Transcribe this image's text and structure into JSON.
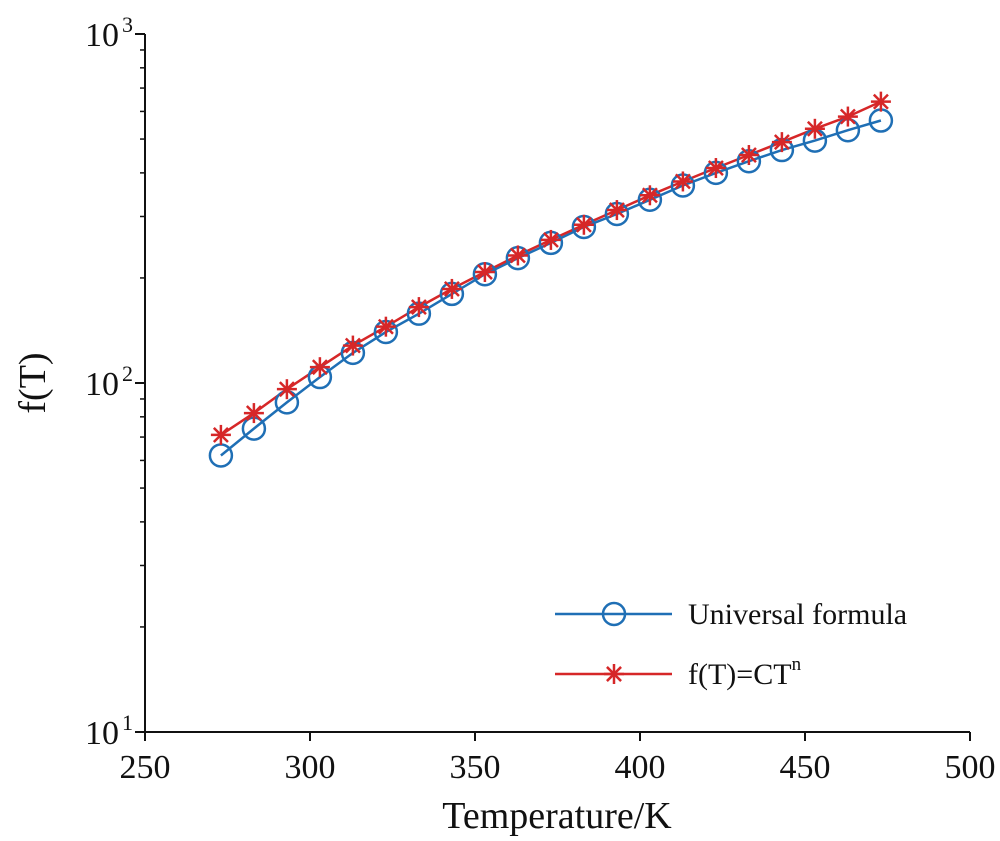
{
  "chart_data": {
    "type": "line",
    "title": "",
    "xlabel": "Temperature/K",
    "ylabel": "f(T)",
    "xlim": [
      250,
      500
    ],
    "ylim": [
      10,
      1000
    ],
    "yscale": "log",
    "grid": false,
    "x_ticks": [
      {
        "value": 250,
        "label": "250"
      },
      {
        "value": 300,
        "label": "300"
      },
      {
        "value": 350,
        "label": "350"
      },
      {
        "value": 400,
        "label": "400"
      },
      {
        "value": 450,
        "label": "450"
      },
      {
        "value": 500,
        "label": "500"
      }
    ],
    "y_ticks": [
      {
        "value": 10,
        "base": "10",
        "exp": "1"
      },
      {
        "value": 100,
        "base": "10",
        "exp": "2"
      },
      {
        "value": 1000,
        "base": "10",
        "exp": "3"
      }
    ],
    "x": [
      273,
      283,
      293,
      303,
      313,
      323,
      333,
      343,
      353,
      363,
      373,
      383,
      393,
      403,
      413,
      423,
      433,
      443,
      453,
      463,
      473
    ],
    "series": [
      {
        "name": "Universal formula",
        "legend_label": "Universal formula",
        "color": "#1f6fb5",
        "marker": "circle",
        "values": [
          62,
          74,
          88,
          104,
          122,
          140,
          158,
          180,
          205,
          228,
          252,
          280,
          305,
          335,
          368,
          400,
          432,
          465,
          495,
          530,
          565
        ]
      },
      {
        "name": "f(T)=CT^n",
        "legend_base": "f(T)=CT",
        "legend_sup": "n",
        "color": "#d62728",
        "marker": "asterisk",
        "values": [
          71,
          82,
          96,
          111,
          128,
          145,
          165,
          186,
          208,
          232,
          257,
          284,
          313,
          345,
          378,
          413,
          450,
          490,
          535,
          580,
          640
        ]
      }
    ],
    "legend_position": "bottom-right"
  }
}
